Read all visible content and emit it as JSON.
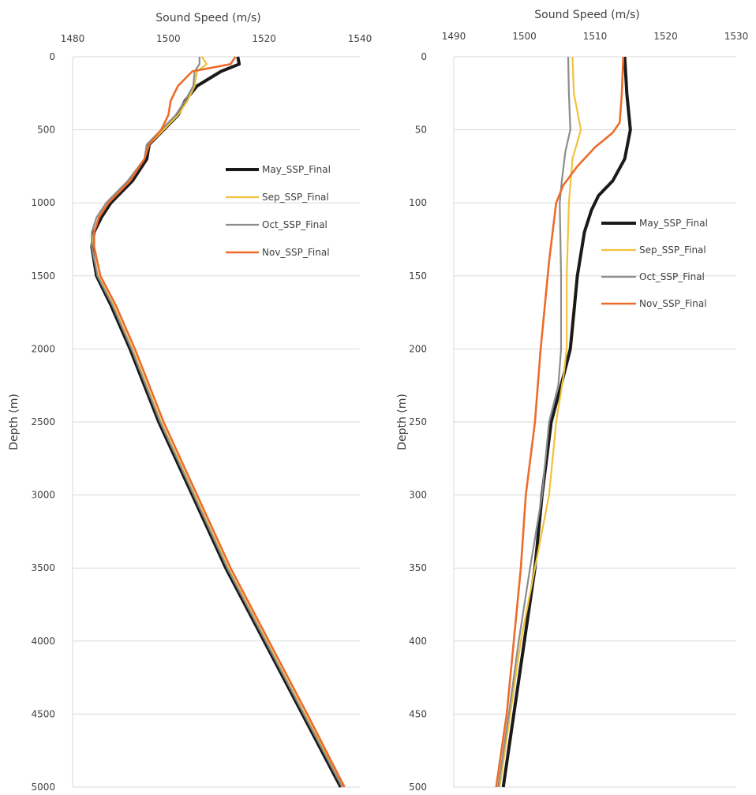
{
  "chart_data": [
    {
      "type": "line",
      "xlabel": "Sound Speed (m/s)",
      "ylabel": "Depth (m)",
      "xlim": [
        1480,
        1540
      ],
      "ylim": [
        0,
        5000
      ],
      "x_ticks": [
        "1480",
        "1500",
        "1520",
        "1540"
      ],
      "y_ticks": [
        "0",
        "500",
        "1000",
        "1500",
        "2000",
        "2500",
        "3000",
        "3500",
        "4000",
        "4500",
        "5000"
      ],
      "y_inverted": true,
      "x_axis_position": "top",
      "grid": "horizontal",
      "legend_position": "right-middle",
      "series": [
        {
          "name": "May_SSP_Final",
          "color": "#1a1a1a",
          "points": [
            [
              1514.5,
              0
            ],
            [
              1514.8,
              50
            ],
            [
              1511,
              100
            ],
            [
              1506,
              200
            ],
            [
              1503.5,
              300
            ],
            [
              1502,
              400
            ],
            [
              1499,
              500
            ],
            [
              1496,
              600
            ],
            [
              1495.5,
              700
            ],
            [
              1492.5,
              850
            ],
            [
              1488,
              1000
            ],
            [
              1486,
              1100
            ],
            [
              1484.5,
              1200
            ],
            [
              1484,
              1300
            ],
            [
              1485,
              1500
            ],
            [
              1488,
              1700
            ],
            [
              1492,
              2000
            ],
            [
              1498,
              2500
            ],
            [
              1505,
              3000
            ],
            [
              1512,
              3500
            ],
            [
              1520,
              4000
            ],
            [
              1528,
              4500
            ],
            [
              1536,
              5000
            ]
          ]
        },
        {
          "name": "Sep_SSP_Final",
          "color": "#f2c13a",
          "points": [
            [
              1507,
              0
            ],
            [
              1508,
              50
            ],
            [
              1506,
              100
            ],
            [
              1505.5,
              200
            ],
            [
              1504,
              300
            ],
            [
              1502,
              400
            ],
            [
              1499,
              500
            ],
            [
              1496,
              600
            ],
            [
              1495,
              700
            ],
            [
              1492,
              850
            ],
            [
              1487.5,
              1000
            ],
            [
              1485.5,
              1100
            ],
            [
              1484.5,
              1200
            ],
            [
              1484,
              1300
            ],
            [
              1485.3,
              1500
            ],
            [
              1488.5,
              1700
            ],
            [
              1492.5,
              2000
            ],
            [
              1498.5,
              2500
            ],
            [
              1505.5,
              3000
            ],
            [
              1512.5,
              3500
            ],
            [
              1520.5,
              4000
            ],
            [
              1528.5,
              4500
            ],
            [
              1536.5,
              5000
            ]
          ]
        },
        {
          "name": "Oct_SSP_Final",
          "color": "#8c8c8c",
          "points": [
            [
              1506.5,
              0
            ],
            [
              1506.5,
              50
            ],
            [
              1505.5,
              100
            ],
            [
              1505.2,
              200
            ],
            [
              1503.5,
              300
            ],
            [
              1501.5,
              400
            ],
            [
              1498.5,
              500
            ],
            [
              1495.5,
              600
            ],
            [
              1495,
              700
            ],
            [
              1491.5,
              850
            ],
            [
              1487,
              1000
            ],
            [
              1485,
              1100
            ],
            [
              1484,
              1200
            ],
            [
              1484,
              1300
            ],
            [
              1485.2,
              1500
            ],
            [
              1488.3,
              1700
            ],
            [
              1492.3,
              2000
            ],
            [
              1498.3,
              2500
            ],
            [
              1505.3,
              3000
            ],
            [
              1512.3,
              3500
            ],
            [
              1520.3,
              4000
            ],
            [
              1528.3,
              4500
            ],
            [
              1536.3,
              5000
            ]
          ]
        },
        {
          "name": "Nov_SSP_Final",
          "color": "#ed6b2b",
          "points": [
            [
              1514,
              0
            ],
            [
              1513,
              50
            ],
            [
              1505,
              100
            ],
            [
              1502,
              200
            ],
            [
              1500.5,
              300
            ],
            [
              1500,
              400
            ],
            [
              1498.5,
              500
            ],
            [
              1496,
              600
            ],
            [
              1495,
              700
            ],
            [
              1492,
              850
            ],
            [
              1487.5,
              1000
            ],
            [
              1485.5,
              1100
            ],
            [
              1484.5,
              1200
            ],
            [
              1484.5,
              1300
            ],
            [
              1485.8,
              1500
            ],
            [
              1489,
              1700
            ],
            [
              1493,
              2000
            ],
            [
              1499,
              2500
            ],
            [
              1506,
              3000
            ],
            [
              1513,
              3500
            ],
            [
              1521,
              4000
            ],
            [
              1529,
              4500
            ],
            [
              1536.8,
              5000
            ]
          ]
        }
      ]
    },
    {
      "type": "line",
      "xlabel": "Sound Speed (m/s)",
      "ylabel": "Depth (m)",
      "xlim": [
        1490,
        1530
      ],
      "ylim": [
        0,
        500
      ],
      "x_ticks": [
        "1490",
        "1500",
        "1510",
        "1520",
        "1530"
      ],
      "y_ticks": [
        "0",
        "50",
        "100",
        "150",
        "200",
        "250",
        "300",
        "350",
        "400",
        "450",
        "500"
      ],
      "y_inverted": true,
      "x_axis_position": "top",
      "grid": "horizontal",
      "legend_position": "right-middle",
      "series": [
        {
          "name": "May_SSP_Final",
          "color": "#1a1a1a",
          "points": [
            [
              1514.2,
              0
            ],
            [
              1514.5,
              25
            ],
            [
              1515,
              50
            ],
            [
              1514.2,
              70
            ],
            [
              1512.5,
              85
            ],
            [
              1510.5,
              95
            ],
            [
              1509.5,
              105
            ],
            [
              1508.5,
              120
            ],
            [
              1507.5,
              150
            ],
            [
              1507,
              175
            ],
            [
              1506.5,
              200
            ],
            [
              1505.2,
              225
            ],
            [
              1503.8,
              250
            ],
            [
              1502.5,
              300
            ],
            [
              1501.5,
              350
            ],
            [
              1500,
              400
            ],
            [
              1498.5,
              450
            ],
            [
              1497,
              500
            ]
          ]
        },
        {
          "name": "Sep_SSP_Final",
          "color": "#f2c13a",
          "points": [
            [
              1506.8,
              0
            ],
            [
              1507,
              25
            ],
            [
              1508,
              50
            ],
            [
              1506.8,
              70
            ],
            [
              1506.3,
              100
            ],
            [
              1506,
              150
            ],
            [
              1506,
              200
            ],
            [
              1505.5,
              220
            ],
            [
              1504.5,
              250
            ],
            [
              1503.5,
              300
            ],
            [
              1501.5,
              350
            ],
            [
              1499.5,
              400
            ],
            [
              1498,
              450
            ],
            [
              1496.5,
              500
            ]
          ]
        },
        {
          "name": "Oct_SSP_Final",
          "color": "#8c8c8c",
          "points": [
            [
              1506.2,
              0
            ],
            [
              1506.3,
              25
            ],
            [
              1506.5,
              50
            ],
            [
              1505.8,
              65
            ],
            [
              1505.3,
              85
            ],
            [
              1505,
              100
            ],
            [
              1505.2,
              150
            ],
            [
              1505.2,
              200
            ],
            [
              1504.8,
              225
            ],
            [
              1503.5,
              250
            ],
            [
              1502.5,
              300
            ],
            [
              1500.8,
              350
            ],
            [
              1499.2,
              400
            ],
            [
              1497.8,
              450
            ],
            [
              1496.3,
              500
            ]
          ]
        },
        {
          "name": "Nov_SSP_Final",
          "color": "#ed6b2b",
          "points": [
            [
              1514,
              0
            ],
            [
              1513.8,
              25
            ],
            [
              1513.5,
              45
            ],
            [
              1512.5,
              52
            ],
            [
              1510,
              62
            ],
            [
              1507.5,
              75
            ],
            [
              1505.5,
              88
            ],
            [
              1504.5,
              100
            ],
            [
              1503.5,
              140
            ],
            [
              1502.8,
              175
            ],
            [
              1502.3,
              200
            ],
            [
              1501.5,
              250
            ],
            [
              1500.2,
              300
            ],
            [
              1499.5,
              350
            ],
            [
              1498.5,
              400
            ],
            [
              1497.5,
              450
            ],
            [
              1496,
              500
            ]
          ]
        }
      ]
    }
  ]
}
